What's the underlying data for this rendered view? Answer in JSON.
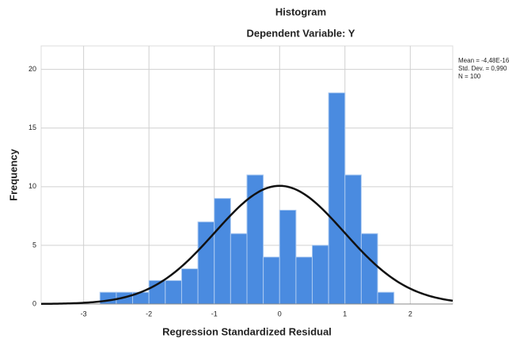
{
  "chart_data": {
    "type": "histogram",
    "title": "Histogram",
    "subtitle": "Dependent Variable: Y",
    "x_label": "Regression Standardized Residual",
    "y_label": "Frequency",
    "bins": [
      -2.75,
      -2.5,
      -2.25,
      -2,
      -1.75,
      -1.5,
      -1.25,
      -1,
      -0.75,
      -0.5,
      -0.25,
      0,
      0.25,
      0.5,
      0.75,
      1,
      1.25,
      1.5,
      1.75
    ],
    "values": [
      1,
      1,
      1,
      2,
      2,
      3,
      7,
      9,
      6,
      11,
      4,
      8,
      4,
      5,
      18,
      11,
      6,
      1
    ],
    "color": "#4a8be0",
    "xlim": [
      -3.65,
      2.65
    ],
    "xticks": [
      -3,
      -2,
      -1,
      0,
      1,
      2
    ],
    "ylim": [
      0,
      22
    ],
    "yticks": [
      0,
      5,
      10,
      15,
      20
    ],
    "grid": true,
    "normal_curve": true,
    "stats": {
      "mean": {
        "value": -4.48e-16,
        "label": "Mean = -4,48E-16"
      },
      "std_dev": {
        "value": 0.99,
        "label": "Std. Dev. = 0,990"
      },
      "n": {
        "value": 100,
        "label": "N = 100"
      }
    }
  }
}
